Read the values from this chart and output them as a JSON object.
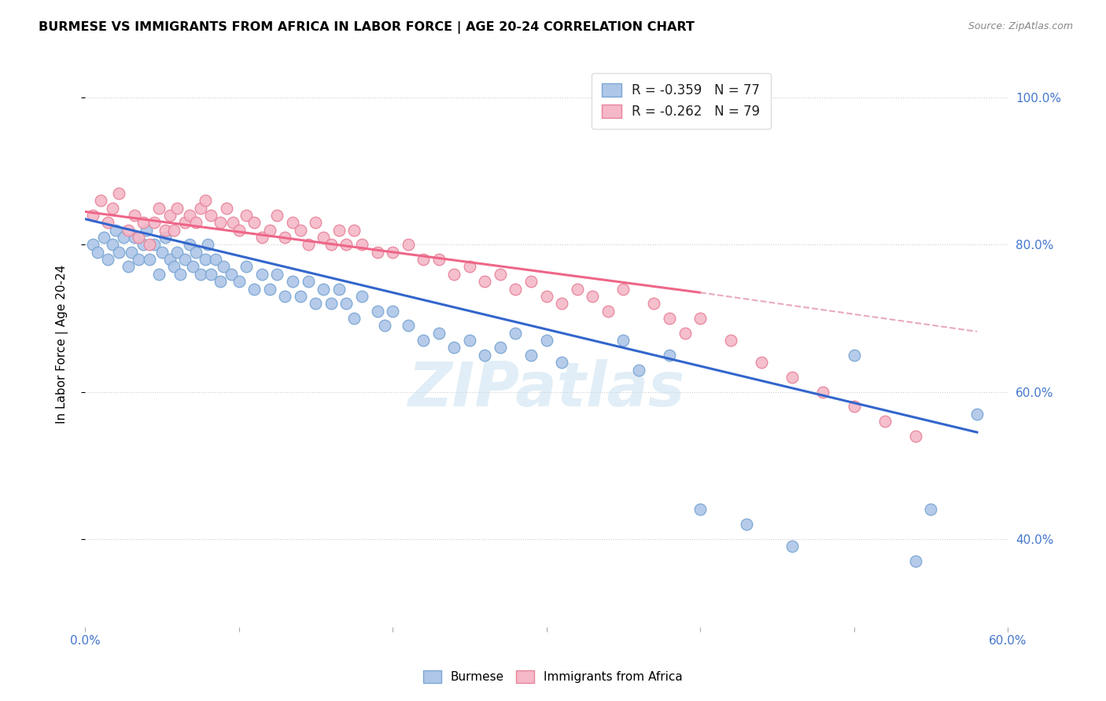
{
  "title": "BURMESE VS IMMIGRANTS FROM AFRICA IN LABOR FORCE | AGE 20-24 CORRELATION CHART",
  "source": "Source: ZipAtlas.com",
  "ylabel": "In Labor Force | Age 20-24",
  "xlim": [
    0.0,
    0.6
  ],
  "ylim": [
    0.28,
    1.05
  ],
  "x_ticks": [
    0.0,
    0.1,
    0.2,
    0.3,
    0.4,
    0.5,
    0.6
  ],
  "x_tick_labels": [
    "0.0%",
    "",
    "",
    "",
    "",
    "",
    "60.0%"
  ],
  "y_ticks": [
    0.4,
    0.6,
    0.8,
    1.0
  ],
  "y_tick_labels_right": [
    "40.0%",
    "60.0%",
    "80.0%",
    "100.0%"
  ],
  "burmese_color": "#aec6e8",
  "africa_color": "#f4b8c8",
  "burmese_edge": "#7ba7d4",
  "africa_edge": "#e8849a",
  "legend_blue_label": "R = -0.359   N = 77",
  "legend_pink_label": "R = -0.262   N = 79",
  "trendline_blue_color": "#3366cc",
  "trendline_pink_color": "#ee6688",
  "trendline_pink_dashed_color": "#e8aabb",
  "watermark": "ZIPatlas",
  "burmese_x": [
    0.005,
    0.008,
    0.012,
    0.015,
    0.018,
    0.02,
    0.022,
    0.025,
    0.028,
    0.03,
    0.032,
    0.035,
    0.038,
    0.04,
    0.042,
    0.045,
    0.048,
    0.05,
    0.052,
    0.055,
    0.058,
    0.06,
    0.062,
    0.065,
    0.068,
    0.07,
    0.072,
    0.075,
    0.078,
    0.08,
    0.082,
    0.085,
    0.088,
    0.09,
    0.095,
    0.1,
    0.105,
    0.11,
    0.115,
    0.12,
    0.125,
    0.13,
    0.135,
    0.14,
    0.145,
    0.15,
    0.155,
    0.16,
    0.165,
    0.17,
    0.175,
    0.18,
    0.19,
    0.195,
    0.2,
    0.21,
    0.22,
    0.23,
    0.24,
    0.25,
    0.26,
    0.27,
    0.28,
    0.29,
    0.3,
    0.31,
    0.35,
    0.36,
    0.38,
    0.4,
    0.43,
    0.46,
    0.5,
    0.54,
    0.55,
    0.58
  ],
  "burmese_y": [
    0.8,
    0.79,
    0.81,
    0.78,
    0.8,
    0.82,
    0.79,
    0.81,
    0.77,
    0.79,
    0.81,
    0.78,
    0.8,
    0.82,
    0.78,
    0.8,
    0.76,
    0.79,
    0.81,
    0.78,
    0.77,
    0.79,
    0.76,
    0.78,
    0.8,
    0.77,
    0.79,
    0.76,
    0.78,
    0.8,
    0.76,
    0.78,
    0.75,
    0.77,
    0.76,
    0.75,
    0.77,
    0.74,
    0.76,
    0.74,
    0.76,
    0.73,
    0.75,
    0.73,
    0.75,
    0.72,
    0.74,
    0.72,
    0.74,
    0.72,
    0.7,
    0.73,
    0.71,
    0.69,
    0.71,
    0.69,
    0.67,
    0.68,
    0.66,
    0.67,
    0.65,
    0.66,
    0.68,
    0.65,
    0.67,
    0.64,
    0.67,
    0.63,
    0.65,
    0.44,
    0.42,
    0.39,
    0.65,
    0.37,
    0.44,
    0.57
  ],
  "africa_x": [
    0.005,
    0.01,
    0.015,
    0.018,
    0.022,
    0.028,
    0.032,
    0.035,
    0.038,
    0.042,
    0.045,
    0.048,
    0.052,
    0.055,
    0.058,
    0.06,
    0.065,
    0.068,
    0.072,
    0.075,
    0.078,
    0.082,
    0.088,
    0.092,
    0.096,
    0.1,
    0.105,
    0.11,
    0.115,
    0.12,
    0.125,
    0.13,
    0.135,
    0.14,
    0.145,
    0.15,
    0.155,
    0.16,
    0.165,
    0.17,
    0.175,
    0.18,
    0.19,
    0.2,
    0.21,
    0.22,
    0.23,
    0.24,
    0.25,
    0.26,
    0.27,
    0.28,
    0.29,
    0.3,
    0.31,
    0.32,
    0.33,
    0.34,
    0.35,
    0.37,
    0.38,
    0.39,
    0.4,
    0.42,
    0.44,
    0.46,
    0.48,
    0.5,
    0.52,
    0.54
  ],
  "africa_y": [
    0.84,
    0.86,
    0.83,
    0.85,
    0.87,
    0.82,
    0.84,
    0.81,
    0.83,
    0.8,
    0.83,
    0.85,
    0.82,
    0.84,
    0.82,
    0.85,
    0.83,
    0.84,
    0.83,
    0.85,
    0.86,
    0.84,
    0.83,
    0.85,
    0.83,
    0.82,
    0.84,
    0.83,
    0.81,
    0.82,
    0.84,
    0.81,
    0.83,
    0.82,
    0.8,
    0.83,
    0.81,
    0.8,
    0.82,
    0.8,
    0.82,
    0.8,
    0.79,
    0.79,
    0.8,
    0.78,
    0.78,
    0.76,
    0.77,
    0.75,
    0.76,
    0.74,
    0.75,
    0.73,
    0.72,
    0.74,
    0.73,
    0.71,
    0.74,
    0.72,
    0.7,
    0.68,
    0.7,
    0.67,
    0.64,
    0.62,
    0.6,
    0.58,
    0.56,
    0.54
  ],
  "trendline_pink_solid_end": 0.4,
  "trendline_pink_dash_start": 0.4
}
